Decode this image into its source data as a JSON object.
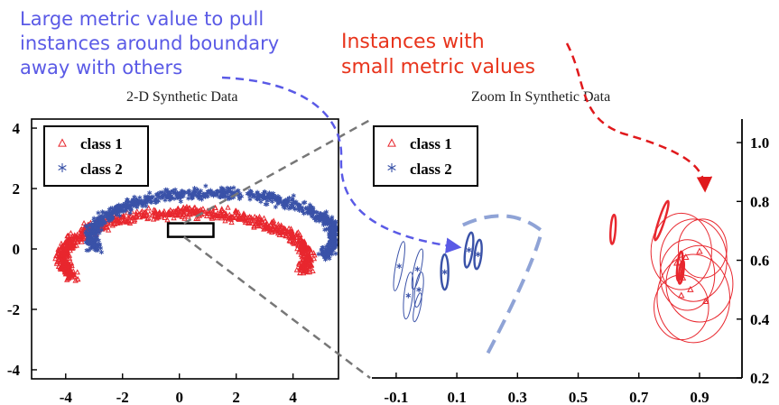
{
  "annotations": {
    "blue_lines": [
      "Large metric value to pull",
      "instances around boundary",
      "away with others"
    ],
    "red_lines": [
      "Instances with",
      "small metric values"
    ],
    "blue_color": "#5a5ae6",
    "red_color": "#e8341c"
  },
  "chart_data": [
    {
      "type": "scatter",
      "title": "2-D Synthetic Data",
      "xlim": [
        -5.2,
        5.6
      ],
      "ylim": [
        -4.3,
        4.3
      ],
      "x_ticks": [
        -4,
        -2,
        0,
        2,
        4
      ],
      "y_ticks": [
        4,
        2,
        0,
        -2,
        -4
      ],
      "legend_position": "top-left",
      "zoom_box": {
        "x": [
          -0.4,
          1.2
        ],
        "y": [
          0.4,
          0.85
        ]
      },
      "series": [
        {
          "name": "class 1",
          "marker": "triangle",
          "color": "#e8272e",
          "shape": "upper crescent",
          "arc": {
            "center_x": 0.2,
            "center_y": -0.3,
            "radius_x": 4.3,
            "radius_y": 1.5,
            "theta_start_deg": -15,
            "theta_end_deg": 205
          }
        },
        {
          "name": "class 2",
          "marker": "asterisk",
          "color": "#3a52a8",
          "shape": "lower crescent",
          "arc": {
            "center_x": 1.2,
            "center_y": 0.4,
            "radius_x": 4.3,
            "radius_y": 1.45,
            "theta_start_deg": 165,
            "theta_end_deg": 385
          }
        }
      ]
    },
    {
      "type": "scatter",
      "title": "Zoom In Synthetic Data",
      "xlim": [
        -0.18,
        1.04
      ],
      "ylim": [
        0.2,
        1.08
      ],
      "x_ticks": [
        -0.1,
        0.1,
        0.3,
        0.5,
        0.7,
        0.9
      ],
      "y_ticks": [
        1.0,
        0.8,
        0.6,
        0.4,
        0.2
      ],
      "legend_position": "top-left",
      "blue_ellipses": [
        {
          "x": -0.09,
          "y": 0.58,
          "rx": 0.012,
          "ry": 0.085,
          "rot": 10
        },
        {
          "x": -0.06,
          "y": 0.48,
          "rx": 0.014,
          "ry": 0.08,
          "rot": 6
        },
        {
          "x": -0.03,
          "y": 0.57,
          "rx": 0.012,
          "ry": 0.07,
          "rot": 12
        },
        {
          "x": -0.025,
          "y": 0.5,
          "rx": 0.013,
          "ry": 0.06,
          "rot": 8
        },
        {
          "x": -0.03,
          "y": 0.44,
          "rx": 0.01,
          "ry": 0.05,
          "rot": 12
        },
        {
          "x": 0.06,
          "y": 0.56,
          "rx": 0.012,
          "ry": 0.06,
          "rot": 0
        },
        {
          "x": 0.14,
          "y": 0.635,
          "rx": 0.012,
          "ry": 0.06,
          "rot": 8
        },
        {
          "x": 0.17,
          "y": 0.62,
          "rx": 0.011,
          "ry": 0.05,
          "rot": 6
        }
      ],
      "red_ellipses": [
        {
          "x": 0.615,
          "y": 0.705,
          "rx": 0.008,
          "ry": 0.05,
          "rot": 4
        },
        {
          "x": 0.775,
          "y": 0.735,
          "rx": 0.009,
          "ry": 0.07,
          "rot": 18
        },
        {
          "x": 0.835,
          "y": 0.58,
          "rx": 0.008,
          "ry": 0.05,
          "rot": 6
        },
        {
          "x": 0.84,
          "y": 0.56,
          "rx": 0.007,
          "ry": 0.04,
          "rot": 8
        },
        {
          "x": 0.88,
          "y": 0.6,
          "rx": 0.11,
          "ry": 0.14,
          "rot": 0
        },
        {
          "x": 0.9,
          "y": 0.52,
          "rx": 0.11,
          "ry": 0.13,
          "rot": 0
        },
        {
          "x": 0.84,
          "y": 0.63,
          "rx": 0.1,
          "ry": 0.13,
          "rot": 0
        },
        {
          "x": 0.88,
          "y": 0.47,
          "rx": 0.12,
          "ry": 0.15,
          "rot": 0
        },
        {
          "x": 0.86,
          "y": 0.55,
          "rx": 0.09,
          "ry": 0.12,
          "rot": 0
        },
        {
          "x": 0.91,
          "y": 0.64,
          "rx": 0.08,
          "ry": 0.1,
          "rot": 0
        },
        {
          "x": 0.84,
          "y": 0.44,
          "rx": 0.09,
          "ry": 0.11,
          "rot": 0
        }
      ],
      "red_points": [
        [
          0.825,
          0.59
        ],
        [
          0.855,
          0.61
        ],
        [
          0.9,
          0.63
        ],
        [
          0.845,
          0.54
        ],
        [
          0.87,
          0.5
        ],
        [
          0.92,
          0.46
        ],
        [
          0.84,
          0.48
        ]
      ],
      "blue_points": [
        [
          -0.09,
          0.58
        ],
        [
          -0.06,
          0.48
        ],
        [
          -0.03,
          0.57
        ],
        [
          -0.025,
          0.5
        ],
        [
          0.06,
          0.56
        ],
        [
          0.14,
          0.635
        ],
        [
          0.17,
          0.62
        ]
      ],
      "boundary_curve": [
        [
          0.12,
          0.72
        ],
        [
          0.27,
          0.76
        ],
        [
          0.38,
          0.7
        ],
        [
          0.2,
          0.28
        ]
      ]
    }
  ]
}
